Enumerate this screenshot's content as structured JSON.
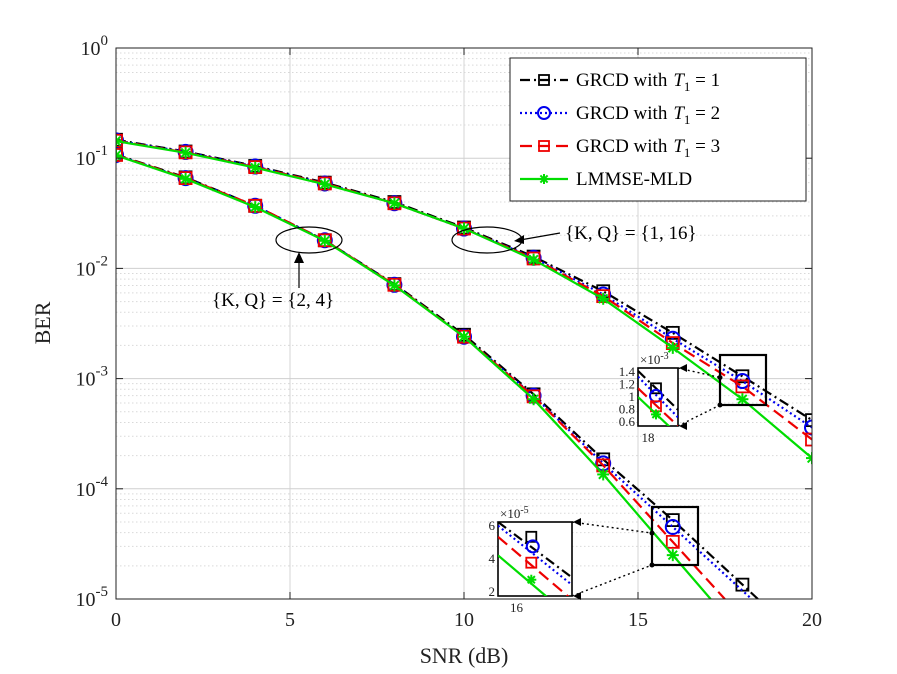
{
  "chart_data": {
    "type": "line",
    "xlabel": "SNR (dB)",
    "ylabel": "BER",
    "xlim": [
      0,
      20
    ],
    "ylim": [
      1e-05,
      1
    ],
    "yscale": "log",
    "grid": true,
    "legend_position": "top-right",
    "x_ticks": [
      0,
      5,
      10,
      15,
      20
    ],
    "y_ticks": [
      {
        "value": 1,
        "base": "10",
        "exp": "0"
      },
      {
        "value": 0.1,
        "base": "10",
        "exp": "-1"
      },
      {
        "value": 0.01,
        "base": "10",
        "exp": "-2"
      },
      {
        "value": 0.001,
        "base": "10",
        "exp": "-3"
      },
      {
        "value": 0.0001,
        "base": "10",
        "exp": "-4"
      },
      {
        "value": 1e-05,
        "base": "10",
        "exp": "-5"
      }
    ],
    "legend": [
      {
        "name": "GRCD with",
        "math": "T",
        "sub": "1",
        "rest": " = 1",
        "color": "#000000",
        "dash": "10,4,2,4",
        "marker": "square"
      },
      {
        "name": "GRCD with",
        "math": "T",
        "sub": "1",
        "rest": " = 2",
        "color": "#0000ee",
        "dash": "2,3",
        "marker": "circle"
      },
      {
        "name": "GRCD with",
        "math": "T",
        "sub": "1",
        "rest": " = 3",
        "color": "#ee0000",
        "dash": "12,6",
        "marker": "square"
      },
      {
        "name": "LMMSE-MLD",
        "math": "",
        "sub": "",
        "rest": "",
        "color": "#00dd00",
        "dash": "",
        "marker": "asterisk"
      }
    ],
    "series": [
      {
        "group": "{1,16}",
        "style": 0,
        "x": [
          0,
          2,
          4,
          6,
          8,
          10,
          12,
          14,
          16,
          18,
          20
        ],
        "y": [
          0.147,
          0.115,
          0.085,
          0.06,
          0.04,
          0.0235,
          0.0128,
          0.0062,
          0.0026,
          0.00105,
          0.00042
        ]
      },
      {
        "group": "{1,16}",
        "style": 1,
        "x": [
          0,
          2,
          4,
          6,
          8,
          10,
          12,
          14,
          16,
          18,
          20
        ],
        "y": [
          0.145,
          0.114,
          0.084,
          0.059,
          0.039,
          0.023,
          0.0125,
          0.0058,
          0.0023,
          0.00095,
          0.00036
        ]
      },
      {
        "group": "{1,16}",
        "style": 2,
        "x": [
          0,
          2,
          4,
          6,
          8,
          10,
          12,
          14,
          16,
          18,
          20
        ],
        "y": [
          0.144,
          0.113,
          0.083,
          0.059,
          0.039,
          0.023,
          0.0123,
          0.0056,
          0.0021,
          0.00085,
          0.00028
        ]
      },
      {
        "group": "{1,16}",
        "style": 3,
        "x": [
          0,
          2,
          4,
          6,
          8,
          10,
          12,
          14,
          16,
          18,
          20
        ],
        "y": [
          0.143,
          0.112,
          0.082,
          0.058,
          0.039,
          0.023,
          0.012,
          0.0053,
          0.0019,
          0.00065,
          0.00019
        ]
      },
      {
        "group": "{2,4}",
        "style": 0,
        "x": [
          0,
          2,
          4,
          6,
          8,
          10,
          12,
          14,
          16,
          18
        ],
        "y": [
          0.108,
          0.067,
          0.037,
          0.018,
          0.0072,
          0.0025,
          0.00072,
          0.000185,
          5.2e-05,
          1.35e-05
        ]
      },
      {
        "group": "{2,4}",
        "style": 1,
        "x": [
          0,
          2,
          4,
          6,
          8,
          10,
          12,
          14,
          16
        ],
        "y": [
          0.107,
          0.066,
          0.037,
          0.018,
          0.0071,
          0.0024,
          0.0007,
          0.00017,
          4.5e-05
        ]
      },
      {
        "group": "{2,4}",
        "style": 2,
        "x": [
          0,
          2,
          4,
          6,
          8,
          10,
          12,
          14,
          16
        ],
        "y": [
          0.107,
          0.066,
          0.037,
          0.018,
          0.0071,
          0.0024,
          0.00069,
          0.000163,
          3.3e-05
        ]
      },
      {
        "group": "{2,4}",
        "style": 3,
        "x": [
          0,
          2,
          4,
          6,
          8,
          10,
          12,
          14,
          16
        ],
        "y": [
          0.106,
          0.065,
          0.036,
          0.0178,
          0.007,
          0.0024,
          0.00065,
          0.000135,
          2.5e-05
        ]
      }
    ],
    "annotations": [
      {
        "text": "{K, Q} = {1, 16}"
      },
      {
        "text": "{K, Q} = {2, 4}"
      }
    ],
    "inset_upper": {
      "x_tick": "18",
      "y_ticks": [
        "1.4",
        "1.2",
        "1",
        "0.8",
        "0.6"
      ],
      "multiplier_base": "×10",
      "multiplier_exp": "-3"
    },
    "inset_lower": {
      "x_tick": "16",
      "y_ticks": [
        "6",
        "4",
        "2"
      ],
      "multiplier_base": "×10",
      "multiplier_exp": "-5"
    }
  }
}
